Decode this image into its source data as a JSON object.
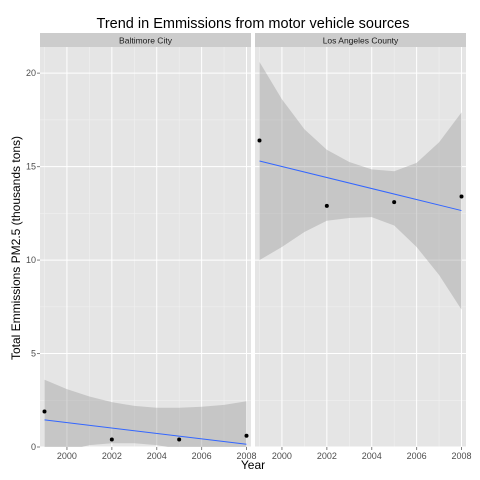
{
  "chart_data": {
    "type": "scatter",
    "title": "Trend in Emmissions from motor vehicle sources",
    "xlabel": "Year",
    "ylabel": "Total Emmissions PM2.5 (thousands tons)",
    "xlim": [
      1998.8,
      2008.2
    ],
    "ylim": [
      0,
      21.4
    ],
    "x_ticks": [
      2000,
      2002,
      2004,
      2006,
      2008
    ],
    "y_ticks": [
      0,
      5,
      10,
      15,
      20
    ],
    "grid": true,
    "legend": "none",
    "facets": [
      {
        "label": "Baltimore City",
        "points": [
          {
            "x": 1999,
            "y": 1.9
          },
          {
            "x": 2002,
            "y": 0.4
          },
          {
            "x": 2005,
            "y": 0.4
          },
          {
            "x": 2008,
            "y": 0.6
          }
        ],
        "trend": {
          "x": [
            1999,
            2008
          ],
          "y": [
            1.45,
            0.15
          ]
        },
        "band": {
          "x": [
            1999,
            2000,
            2001,
            2002,
            2003,
            2004,
            2005,
            2006,
            2007,
            2008
          ],
          "upper": [
            3.6,
            3.1,
            2.7,
            2.4,
            2.2,
            2.1,
            2.1,
            2.15,
            2.25,
            2.45
          ],
          "lower": [
            -0.7,
            -0.2,
            0.1,
            0.2,
            0.2,
            0.1,
            -0.1,
            -0.5,
            -1.0,
            -2.1
          ]
        }
      },
      {
        "label": "Los Angeles County",
        "points": [
          {
            "x": 1999,
            "y": 16.4
          },
          {
            "x": 2002,
            "y": 12.9
          },
          {
            "x": 2005,
            "y": 13.1
          },
          {
            "x": 2008,
            "y": 13.4
          }
        ],
        "trend": {
          "x": [
            1999,
            2008
          ],
          "y": [
            15.3,
            12.65
          ]
        },
        "band": {
          "x": [
            1999,
            2000,
            2001,
            2002,
            2003,
            2004,
            2005,
            2006,
            2007,
            2008
          ],
          "upper": [
            20.6,
            18.6,
            17.0,
            15.9,
            15.25,
            14.85,
            14.75,
            15.2,
            16.3,
            17.9
          ],
          "lower": [
            10.0,
            10.7,
            11.5,
            12.1,
            12.25,
            12.3,
            11.85,
            10.7,
            9.2,
            7.35
          ]
        }
      }
    ],
    "colors": {
      "panel_bg": "#e5e5e5",
      "grid_major": "#ffffff",
      "grid_minor": "#f2f2f2",
      "strip_bg": "#cccccc",
      "band": "#999999",
      "trend": "#3366ff",
      "point": "#000000"
    }
  }
}
